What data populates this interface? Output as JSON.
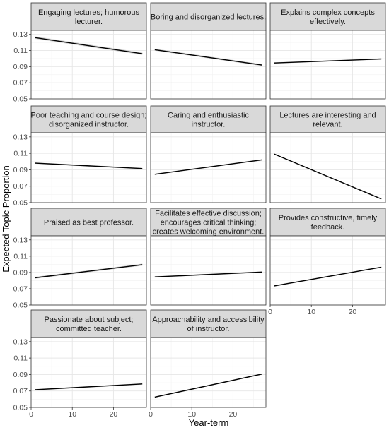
{
  "chart_data": {
    "type": "line",
    "xlabel": "Year-term",
    "ylabel": "Expected Topic Proportion",
    "xlim": [
      0,
      28
    ],
    "ylim": [
      0.05,
      0.135
    ],
    "x_ticks": [
      0,
      10,
      20
    ],
    "y_ticks": [
      0.05,
      0.07,
      0.09,
      0.11,
      0.13
    ],
    "x_tick_labels": [
      "0",
      "10",
      "20"
    ],
    "y_tick_labels": [
      "0.05",
      "0.07",
      "0.09",
      "0.11",
      "0.13"
    ],
    "grid": true,
    "facets": [
      {
        "title": [
          "Engaging lectures; humorous",
          "lecturer."
        ],
        "x": [
          1,
          27
        ],
        "y": [
          0.126,
          0.106
        ],
        "ci": 0.0015
      },
      {
        "title": [
          "Boring and disorganized lectures."
        ],
        "x": [
          1,
          27
        ],
        "y": [
          0.111,
          0.092
        ],
        "ci": 0.0012
      },
      {
        "title": [
          "Explains complex concepts",
          "effectively."
        ],
        "x": [
          1,
          27
        ],
        "y": [
          0.0945,
          0.0995
        ],
        "ci": 0.0008
      },
      {
        "title": [
          "Poor teaching and course design;",
          "disorganized instructor."
        ],
        "x": [
          1,
          27
        ],
        "y": [
          0.098,
          0.0915
        ],
        "ci": 0.0008
      },
      {
        "title": [
          "Caring and enthusiastic",
          "instructor."
        ],
        "x": [
          1,
          27
        ],
        "y": [
          0.0845,
          0.102
        ],
        "ci": 0.0008
      },
      {
        "title": [
          "Lectures are interesting and",
          "relevant."
        ],
        "x": [
          1,
          27
        ],
        "y": [
          0.109,
          0.0545
        ],
        "ci": 0.0008
      },
      {
        "title": [
          "Praised as best professor."
        ],
        "x": [
          1,
          27
        ],
        "y": [
          0.0835,
          0.0995
        ],
        "ci": 0.0012
      },
      {
        "title": [
          "Facilitates effective discussion;",
          "encourages critical thinking;",
          "creates welcoming environment."
        ],
        "x": [
          1,
          27
        ],
        "y": [
          0.0845,
          0.0905
        ],
        "ci": 0.0008
      },
      {
        "title": [
          "Provides constructive, timely",
          "feedback."
        ],
        "x": [
          1,
          27
        ],
        "y": [
          0.0735,
          0.0965
        ],
        "ci": 0.0008
      },
      {
        "title": [
          "Passionate about subject;",
          "committed teacher."
        ],
        "x": [
          1,
          27
        ],
        "y": [
          0.0715,
          0.0785
        ],
        "ci": 0.0008
      },
      {
        "title": [
          "Approachability and accessibility",
          "of instructor."
        ],
        "x": [
          1,
          27
        ],
        "y": [
          0.0625,
          0.0905
        ],
        "ci": 0.0008
      }
    ]
  }
}
